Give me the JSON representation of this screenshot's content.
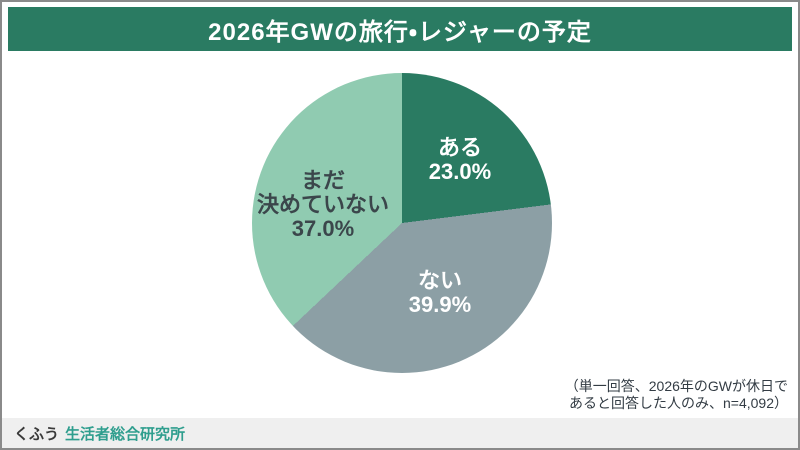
{
  "header": {
    "title": "2026年GWの旅行・レジャーの予定"
  },
  "chart_data": {
    "type": "pie",
    "title": "2026年GWの旅行・レジャーの予定",
    "start_angle_deg": 0,
    "direction": "clockwise",
    "segments": [
      {
        "label": "ある",
        "lines": [
          "ある"
        ],
        "value": 23.0,
        "pct_label": "23.0%",
        "color": "#2A7B62",
        "label_color": "#FFFFFF"
      },
      {
        "label": "ない",
        "lines": [
          "ない"
        ],
        "value": 39.9,
        "pct_label": "39.9%",
        "color": "#8C9FA5",
        "label_color": "#FFFFFF"
      },
      {
        "label": "まだ決めていない",
        "lines": [
          "まだ",
          "決めていない"
        ],
        "value": 37.0,
        "pct_label": "37.0%",
        "color": "#90CBB1",
        "label_color": "#3B464B"
      }
    ],
    "source_note": "（単一回答、2026年のGWが休日であると回答した人のみ、n=4,092）"
  },
  "footnote": {
    "line1": "（単一回答、2026年のGWが休日で",
    "line2": "あると回答した人のみ、n=4,092）"
  },
  "footer": {
    "brand_primary": "くふう",
    "brand_secondary": "生活者総合研究所"
  },
  "colors": {
    "header_bg": "#2A7B62",
    "header_text": "#FFFFFF",
    "frame_border": "#8A8A8A",
    "footer_bg": "#EFEFEF",
    "brand_primary_text": "#3A3A3A",
    "brand_secondary_text": "#2F9E8E",
    "footnote_text": "#333C44"
  }
}
